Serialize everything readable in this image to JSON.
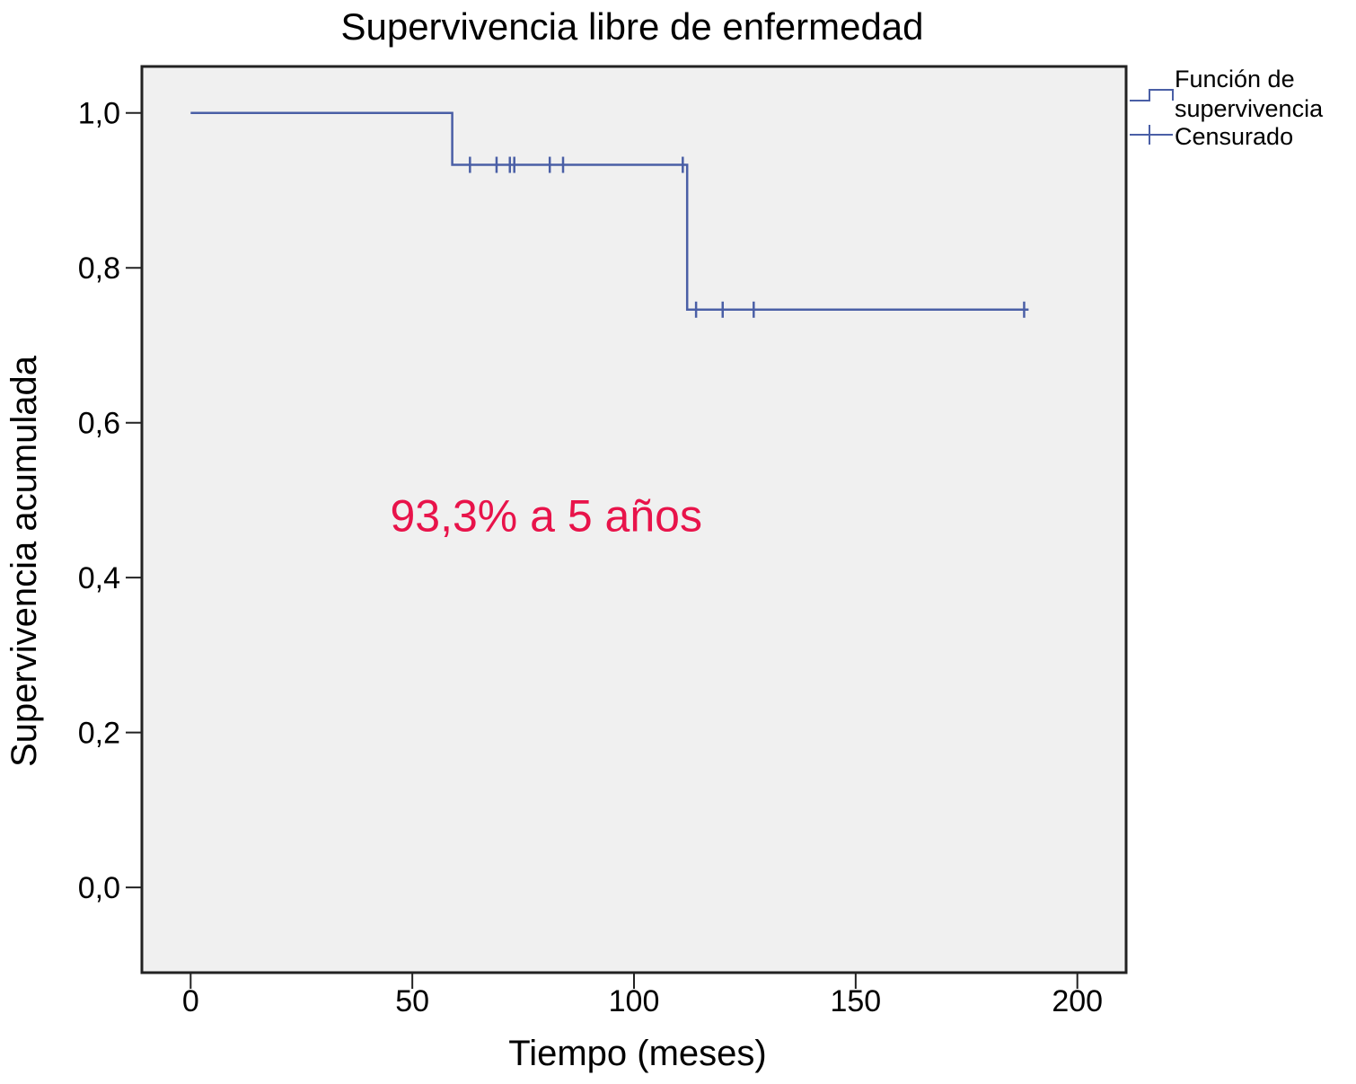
{
  "chart_data": {
    "type": "line",
    "title": "Supervivencia libre de enfermedad",
    "xlabel": "Tiempo (meses)",
    "ylabel": "Supervivencia acumulada",
    "xlim": [
      -11,
      211
    ],
    "ylim": [
      -0.11,
      1.06
    ],
    "x_ticks": [
      {
        "value": 0,
        "label": "0"
      },
      {
        "value": 50,
        "label": "50"
      },
      {
        "value": 100,
        "label": "100"
      },
      {
        "value": 150,
        "label": "150"
      },
      {
        "value": 200,
        "label": "200"
      }
    ],
    "y_ticks": [
      {
        "value": 0.0,
        "label": "0,0"
      },
      {
        "value": 0.2,
        "label": "0,2"
      },
      {
        "value": 0.4,
        "label": "0,4"
      },
      {
        "value": 0.6,
        "label": "0,6"
      },
      {
        "value": 0.8,
        "label": "0,8"
      },
      {
        "value": 1.0,
        "label": "1,0"
      }
    ],
    "grid": false,
    "legend_position": "top-right outside",
    "series": [
      {
        "name": "Función de supervivencia",
        "kind": "step",
        "points": [
          {
            "x": 0,
            "y": 1.0
          },
          {
            "x": 59,
            "y": 1.0
          },
          {
            "x": 59,
            "y": 0.933
          },
          {
            "x": 112,
            "y": 0.933
          },
          {
            "x": 112,
            "y": 0.746
          },
          {
            "x": 189,
            "y": 0.746
          }
        ]
      },
      {
        "name": "Censurado",
        "kind": "censor-marks",
        "points": [
          {
            "x": 63,
            "y": 0.933
          },
          {
            "x": 69,
            "y": 0.933
          },
          {
            "x": 72,
            "y": 0.933
          },
          {
            "x": 73,
            "y": 0.933
          },
          {
            "x": 81,
            "y": 0.933
          },
          {
            "x": 84,
            "y": 0.933
          },
          {
            "x": 111,
            "y": 0.933
          },
          {
            "x": 114,
            "y": 0.746
          },
          {
            "x": 120,
            "y": 0.746
          },
          {
            "x": 127,
            "y": 0.746
          },
          {
            "x": 188,
            "y": 0.746
          }
        ]
      }
    ],
    "legend": [
      {
        "label_lines": [
          "Función de",
          "supervivencia"
        ],
        "marker": "step"
      },
      {
        "label_lines": [
          "Censurado"
        ],
        "marker": "cross"
      }
    ],
    "annotations": [
      {
        "text": "93,3% a 5 años",
        "x": 45,
        "y": 0.46,
        "color": "#e8134a"
      }
    ],
    "colors": {
      "series": "#4a5fa6",
      "plot_background": "#f0f0f0",
      "annotation": "#e8134a"
    }
  }
}
